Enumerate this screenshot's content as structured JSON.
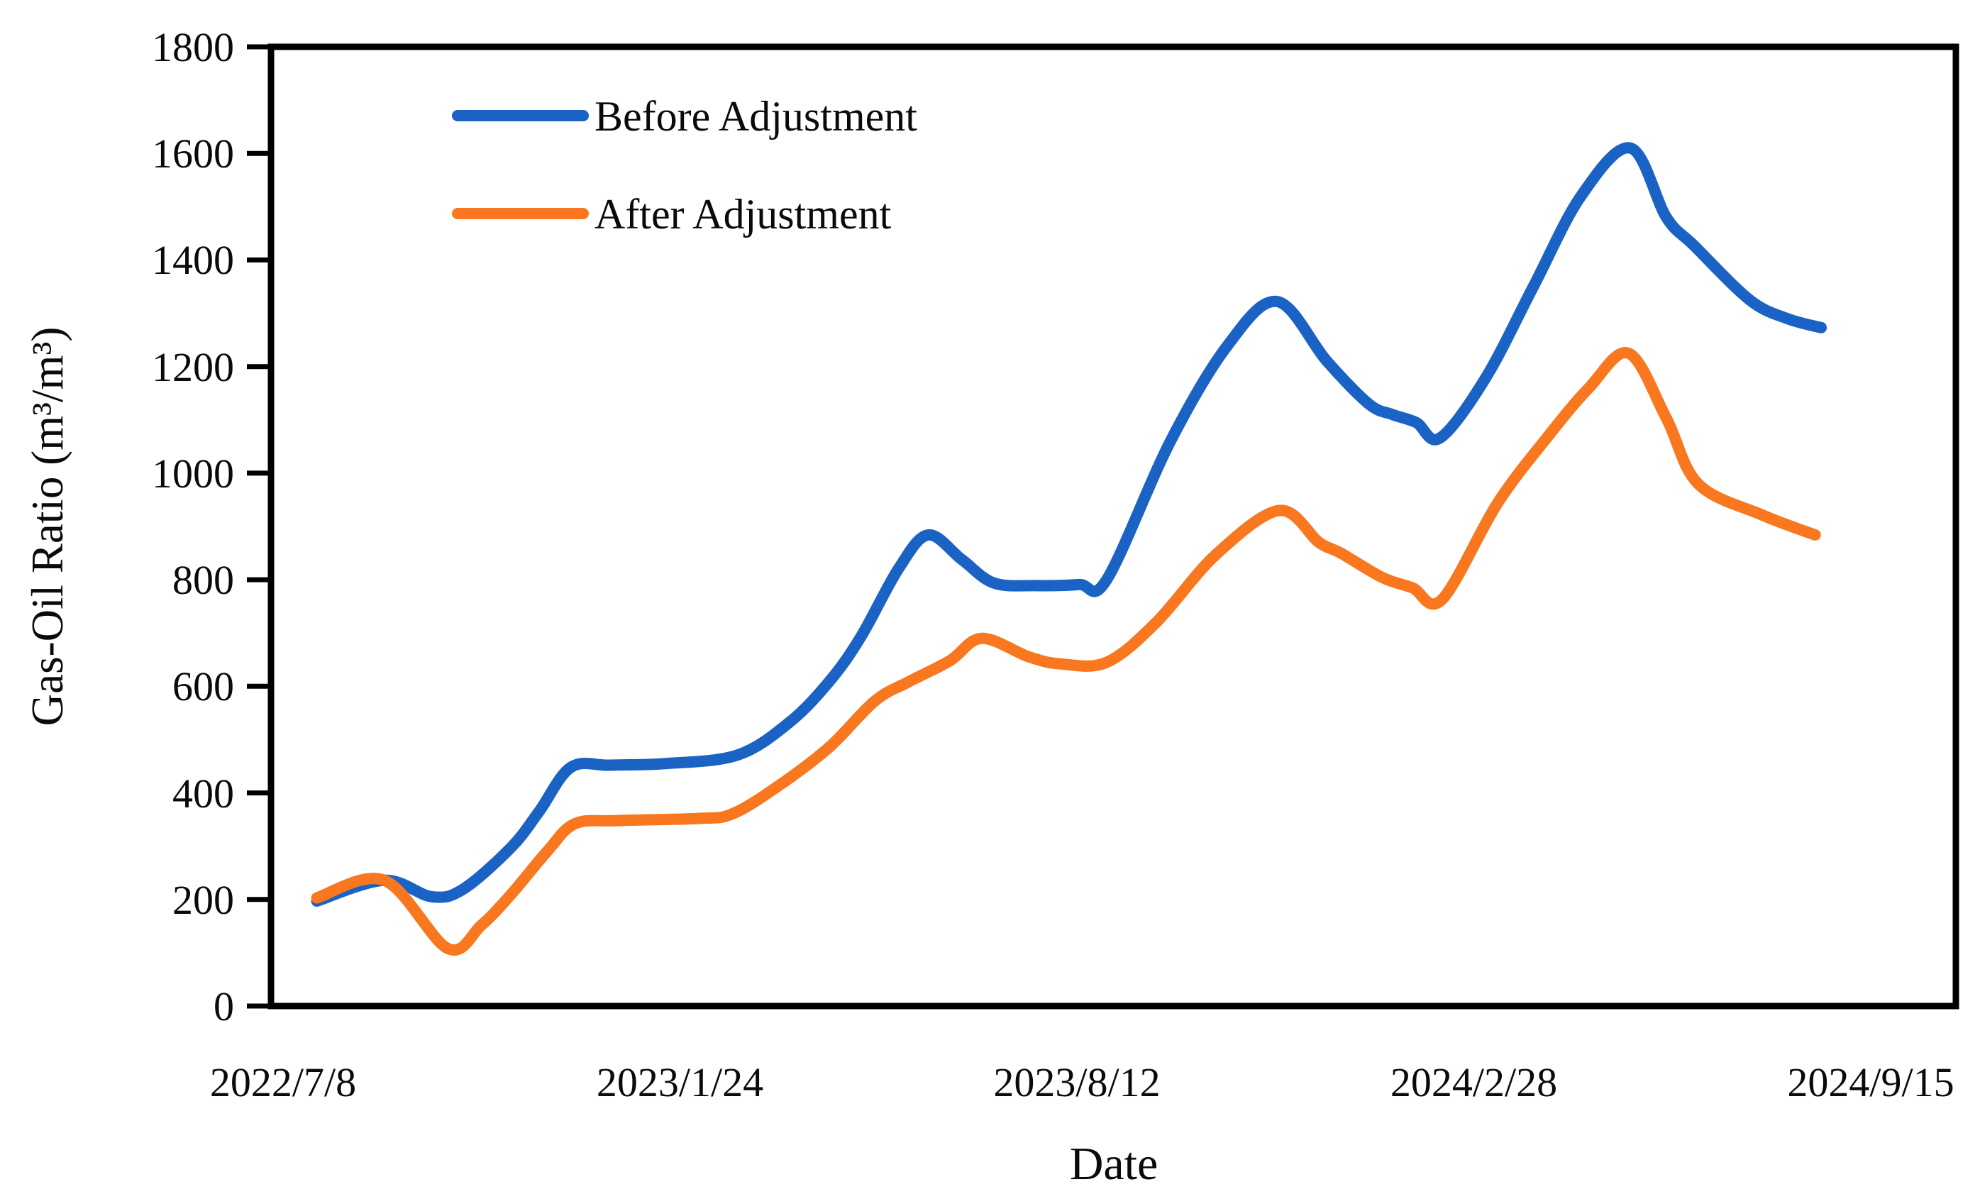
{
  "figure": {
    "kind": "line chart",
    "background": "#ffffff",
    "text_color": "#0a0a0a",
    "axis_color": "#000000"
  },
  "chart_data": {
    "type": "line",
    "title": "",
    "xlabel": "Date",
    "ylabel": "Gas-Oil Ratio (m³/m³)",
    "grid": false,
    "legend_position": "top-left inside plot area",
    "x_axis": {
      "tick_labels": [
        "2022/7/8",
        "2023/1/24",
        "2023/8/12",
        "2024/2/28",
        "2024/9/15"
      ],
      "tick_interval_days": 200,
      "start_date": "2022/7/8",
      "end_date": "2024/9/15"
    },
    "y_axis": {
      "min": 0,
      "max": 1800,
      "tick_step": 200,
      "tick_labels": [
        "0",
        "200",
        "400",
        "600",
        "800",
        "1000",
        "1200",
        "1400",
        "1600",
        "1800"
      ]
    },
    "x_unit": "days since 2022/7/8",
    "series": [
      {
        "name": "Before Adjustment",
        "color": "#1A63C5",
        "points": [
          [
            17,
            197
          ],
          [
            51,
            236
          ],
          [
            75,
            205
          ],
          [
            91,
            220
          ],
          [
            115,
            298
          ],
          [
            129,
            365
          ],
          [
            145,
            448
          ],
          [
            165,
            452
          ],
          [
            193,
            455
          ],
          [
            229,
            471
          ],
          [
            255,
            532
          ],
          [
            275,
            608
          ],
          [
            291,
            692
          ],
          [
            310,
            820
          ],
          [
            325,
            884
          ],
          [
            342,
            838
          ],
          [
            358,
            794
          ],
          [
            379,
            789
          ],
          [
            401,
            791
          ],
          [
            415,
            800
          ],
          [
            447,
            1059
          ],
          [
            476,
            1240
          ],
          [
            501,
            1322
          ],
          [
            526,
            1210
          ],
          [
            547,
            1130
          ],
          [
            559,
            1110
          ],
          [
            571,
            1095
          ],
          [
            583,
            1066
          ],
          [
            606,
            1179
          ],
          [
            630,
            1350
          ],
          [
            654,
            1520
          ],
          [
            679,
            1610
          ],
          [
            697,
            1480
          ],
          [
            711,
            1427
          ],
          [
            739,
            1325
          ],
          [
            758,
            1290
          ],
          [
            775,
            1273
          ]
        ]
      },
      {
        "name": "After Adjustment",
        "color": "#F8771F",
        "points": [
          [
            17,
            203
          ],
          [
            51,
            236
          ],
          [
            83,
            108
          ],
          [
            100,
            152
          ],
          [
            115,
            210
          ],
          [
            133,
            290
          ],
          [
            147,
            342
          ],
          [
            168,
            348
          ],
          [
            209,
            352
          ],
          [
            226,
            360
          ],
          [
            248,
            409
          ],
          [
            275,
            485
          ],
          [
            298,
            572
          ],
          [
            315,
            608
          ],
          [
            336,
            648
          ],
          [
            352,
            690
          ],
          [
            376,
            655
          ],
          [
            392,
            642
          ],
          [
            415,
            645
          ],
          [
            440,
            720
          ],
          [
            470,
            847
          ],
          [
            502,
            930
          ],
          [
            522,
            870
          ],
          [
            533,
            850
          ],
          [
            554,
            804
          ],
          [
            569,
            785
          ],
          [
            584,
            763
          ],
          [
            612,
            944
          ],
          [
            638,
            1072
          ],
          [
            658,
            1160
          ],
          [
            678,
            1225
          ],
          [
            697,
            1103
          ],
          [
            713,
            980
          ],
          [
            745,
            922
          ],
          [
            772,
            884
          ]
        ]
      }
    ]
  }
}
